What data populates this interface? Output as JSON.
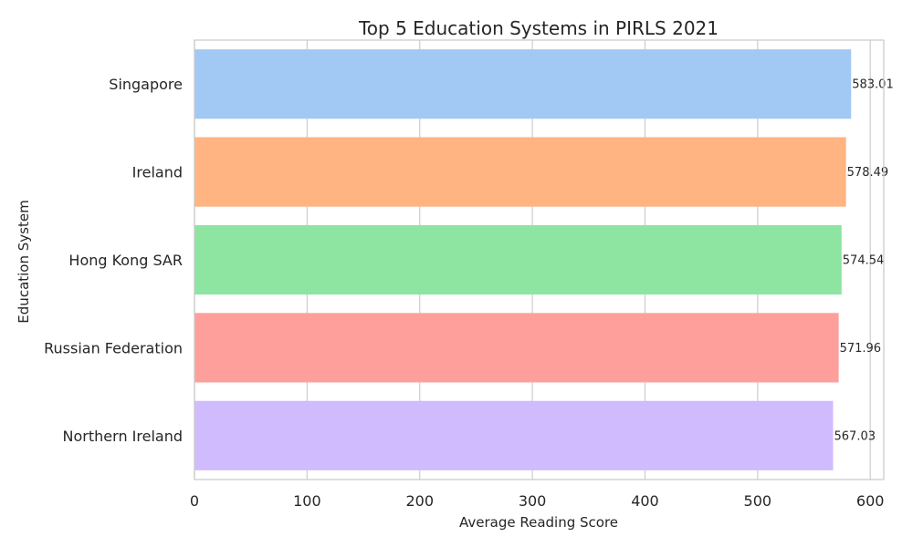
{
  "chart_data": {
    "type": "bar",
    "orientation": "horizontal",
    "title": "Top 5 Education Systems in PIRLS 2021",
    "xlabel": "Average Reading Score",
    "ylabel": "Education System",
    "categories": [
      "Singapore",
      "Ireland",
      "Hong Kong SAR",
      "Russian Federation",
      "Northern Ireland"
    ],
    "values": [
      583.01,
      578.49,
      574.54,
      571.96,
      567.03
    ],
    "value_labels": [
      "583.01",
      "578.49",
      "574.54",
      "571.96",
      "567.03"
    ],
    "colors": [
      "#a1c9f4",
      "#ffb482",
      "#8de5a1",
      "#ff9f9b",
      "#d0bbff"
    ],
    "xlim": [
      0,
      612
    ],
    "xticks": [
      0,
      100,
      200,
      300,
      400,
      500,
      600
    ],
    "xtick_labels": [
      "0",
      "100",
      "200",
      "300",
      "400",
      "500",
      "600"
    ],
    "grid": true,
    "legend": "none"
  }
}
